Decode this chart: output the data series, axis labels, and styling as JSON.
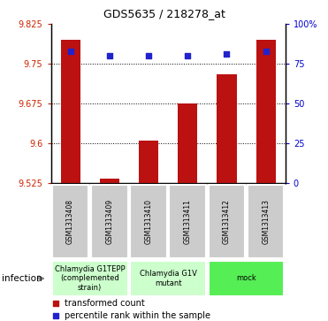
{
  "title": "GDS5635 / 218278_at",
  "samples": [
    "GSM1313408",
    "GSM1313409",
    "GSM1313410",
    "GSM1313411",
    "GSM1313412",
    "GSM1313413"
  ],
  "red_values": [
    9.795,
    9.533,
    9.605,
    9.675,
    9.73,
    9.795
  ],
  "blue_values": [
    83,
    80,
    80,
    80,
    81,
    83
  ],
  "ylim_left": [
    9.525,
    9.825
  ],
  "ylim_right": [
    0,
    100
  ],
  "yticks_left": [
    9.525,
    9.6,
    9.675,
    9.75,
    9.825
  ],
  "yticks_right": [
    0,
    25,
    50,
    75,
    100
  ],
  "ytick_labels_left": [
    "9.525",
    "9.6",
    "9.675",
    "9.75",
    "9.825"
  ],
  "ytick_labels_right": [
    "0",
    "25",
    "50",
    "75",
    "100%"
  ],
  "hgrid_values": [
    9.6,
    9.675,
    9.75
  ],
  "group_boundaries": [
    {
      "start": 0,
      "end": 1,
      "color": "#ccffcc",
      "label": "Chlamydia G1TEPP\n(complemented\nstrain)"
    },
    {
      "start": 2,
      "end": 3,
      "color": "#ccffcc",
      "label": "Chlamydia G1V\nmutant"
    },
    {
      "start": 4,
      "end": 5,
      "color": "#55ee55",
      "label": "mock"
    }
  ],
  "infection_label": "infection",
  "legend_red": "transformed count",
  "legend_blue": "percentile rank within the sample",
  "bar_color": "#bb1111",
  "dot_color": "#2222cc",
  "bar_width": 0.5,
  "bg_color": "#ffffff",
  "plot_bg": "#ffffff",
  "sample_box_color": "#cccccc",
  "title_fontsize": 9,
  "tick_fontsize": 7,
  "sample_fontsize": 5.5,
  "group_fontsize": 6,
  "legend_fontsize": 7
}
